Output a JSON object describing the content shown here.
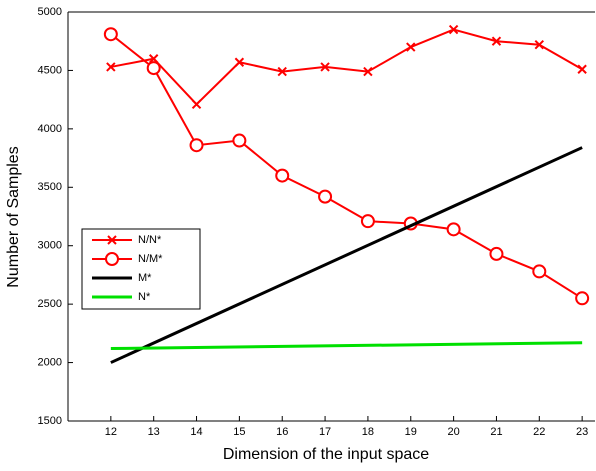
{
  "chart_data": {
    "type": "line",
    "x_label": "Dimension of the input space",
    "y_label": "Number of Samples",
    "xlim": [
      11,
      23.3
    ],
    "ylim": [
      1500,
      5000
    ],
    "xticks": [
      12,
      13,
      14,
      15,
      16,
      17,
      18,
      19,
      20,
      21,
      22,
      23
    ],
    "yticks": [
      1500,
      2000,
      2500,
      3000,
      3500,
      4000,
      4500,
      5000
    ],
    "series": [
      {
        "name": "N/N*",
        "color": "#ff0000",
        "marker": "x",
        "x": [
          12,
          13,
          14,
          15,
          16,
          17,
          18,
          19,
          20,
          21,
          22,
          23
        ],
        "values": [
          4530,
          4600,
          4210,
          4570,
          4490,
          4530,
          4490,
          4700,
          4850,
          4750,
          4720,
          4510
        ]
      },
      {
        "name": "N/M*",
        "color": "#ff0000",
        "marker": "o",
        "x": [
          12,
          13,
          14,
          15,
          16,
          17,
          18,
          19,
          20,
          21,
          22,
          23
        ],
        "values": [
          4810,
          4520,
          3860,
          3900,
          3600,
          3420,
          3210,
          3190,
          3140,
          2930,
          2780,
          2550
        ]
      },
      {
        "name": "M*",
        "color": "#000000",
        "marker": "none",
        "x": [
          12,
          23
        ],
        "values": [
          2000,
          3840
        ]
      },
      {
        "name": "N*",
        "color": "#00e000",
        "marker": "none",
        "x": [
          12,
          23
        ],
        "values": [
          2120,
          2170
        ]
      }
    ]
  }
}
